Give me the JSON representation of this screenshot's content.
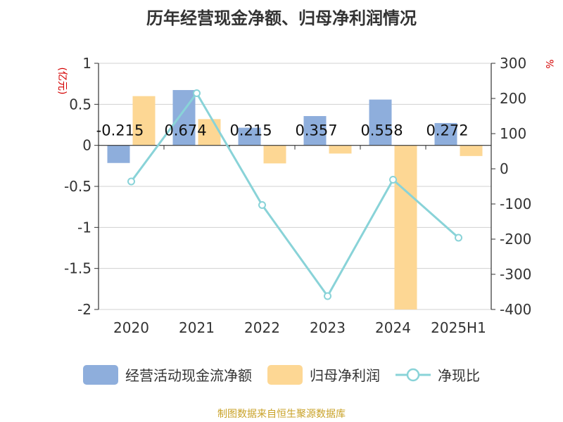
{
  "chart_data": {
    "type": "bar",
    "title": "历年经营现金净额、归母净利润情况",
    "categories": [
      "2020",
      "2021",
      "2022",
      "2023",
      "2024",
      "2025H1"
    ],
    "left_axis": {
      "label": "(亿元)",
      "ylim": [
        -2,
        1
      ],
      "ticks": [
        "1",
        "0.5",
        "0",
        "-0.5",
        "-1",
        "-1.5",
        "-2"
      ]
    },
    "right_axis": {
      "label": "%",
      "ylim": [
        -400,
        300
      ],
      "ticks": [
        "300",
        "200",
        "100",
        "0",
        "-100",
        "-200",
        "-300",
        "-400"
      ]
    },
    "series": [
      {
        "name": "经营活动现金流净额",
        "type": "bar",
        "axis": "left",
        "color": "#8eaedc",
        "values": [
          -0.215,
          0.674,
          0.215,
          0.357,
          0.558,
          0.272
        ],
        "labels": [
          "-0.215",
          "0.674",
          "0.215",
          "0.357",
          "0.558",
          "0.272"
        ]
      },
      {
        "name": "归母净利润",
        "type": "bar",
        "axis": "left",
        "color": "#fdd794",
        "values": [
          0.6,
          0.32,
          -0.22,
          -0.1,
          -2.0,
          -0.13
        ]
      },
      {
        "name": "净现比",
        "type": "line",
        "axis": "right",
        "color": "#89d3d8",
        "values": [
          -36,
          215,
          -103,
          -362,
          -31,
          -196
        ]
      }
    ],
    "grid": true,
    "legend_position": "bottom"
  },
  "source": "制图数据来自恒生聚源数据库"
}
